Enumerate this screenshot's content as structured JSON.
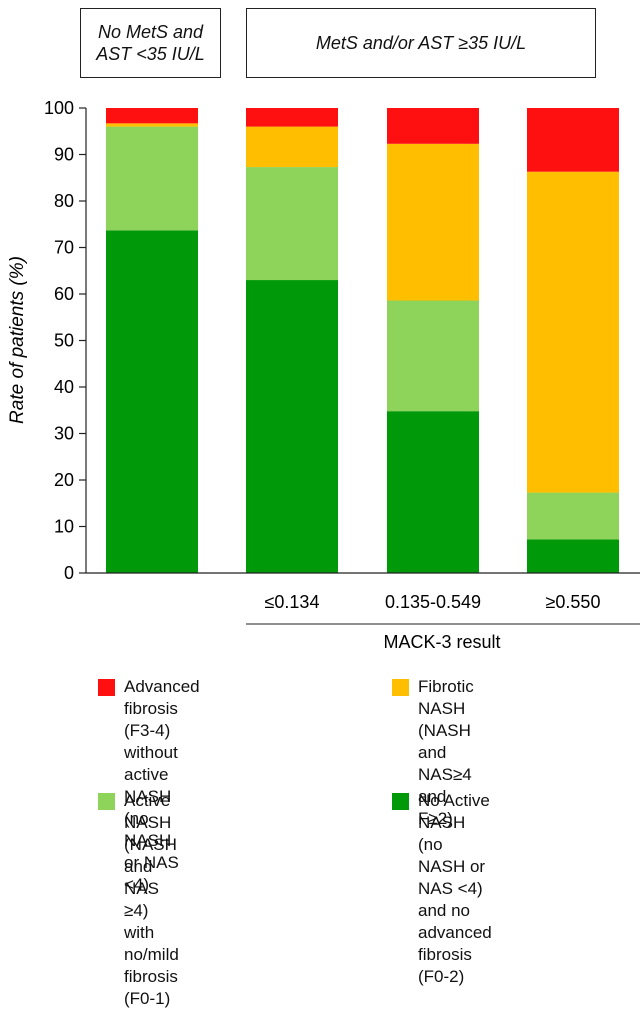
{
  "groups": {
    "left_label": "No MetS and\nAST <35 IU/L",
    "right_label": "MetS and/or AST ≥35 IU/L"
  },
  "chart_data": {
    "type": "bar",
    "stacked": true,
    "categories": [
      "",
      "≤0.134",
      "0.135-0.549",
      "≥0.550"
    ],
    "xlabel": "MACK-3 result",
    "ylabel": "Rate of patients (%)",
    "ylim": [
      0,
      100
    ],
    "yticks": [
      0,
      10,
      20,
      30,
      40,
      50,
      60,
      70,
      80,
      90,
      100
    ],
    "grid": false,
    "legend_position": "bottom",
    "series": [
      {
        "name": "No Active NASH (no NASH or NAS <4) and no advanced fibrosis (F0-2)",
        "color": "#00990a",
        "values": [
          73.7,
          63.0,
          34.8,
          7.2
        ]
      },
      {
        "name": "Active NASH (NASH and NAS ≥4) with no/mild fibrosis (F0-1)",
        "color": "#8ed35a",
        "values": [
          22.3,
          24.3,
          23.8,
          10.1
        ]
      },
      {
        "name": "Fibrotic NASH (NASH and NAS≥4 and F≥2)",
        "color": "#ffbf00",
        "values": [
          0.7,
          8.7,
          33.7,
          69.0
        ]
      },
      {
        "name": "Advanced fibrosis (F3-4) without active NASH (no NASH or NAS <4)",
        "color": "#ff1010",
        "values": [
          3.3,
          4.0,
          7.7,
          13.7
        ]
      }
    ]
  },
  "legend": [
    {
      "color": "#ff1010",
      "text": "Advanced fibrosis\n(F3-4) without active\nNASH (no NASH\nor NAS <4)"
    },
    {
      "color": "#ffbf00",
      "text": "Fibrotic NASH\n(NASH and NAS≥4\nand F≥2)"
    },
    {
      "color": "#8ed35a",
      "text": "Active NASH\n(NASH and NAS ≥4)\nwith no/mild fibrosis (F0-1)"
    },
    {
      "color": "#00990a",
      "text": "No Active NASH\n(no NASH or NAS <4)\nand no advanced\nfibrosis (F0-2)"
    }
  ]
}
